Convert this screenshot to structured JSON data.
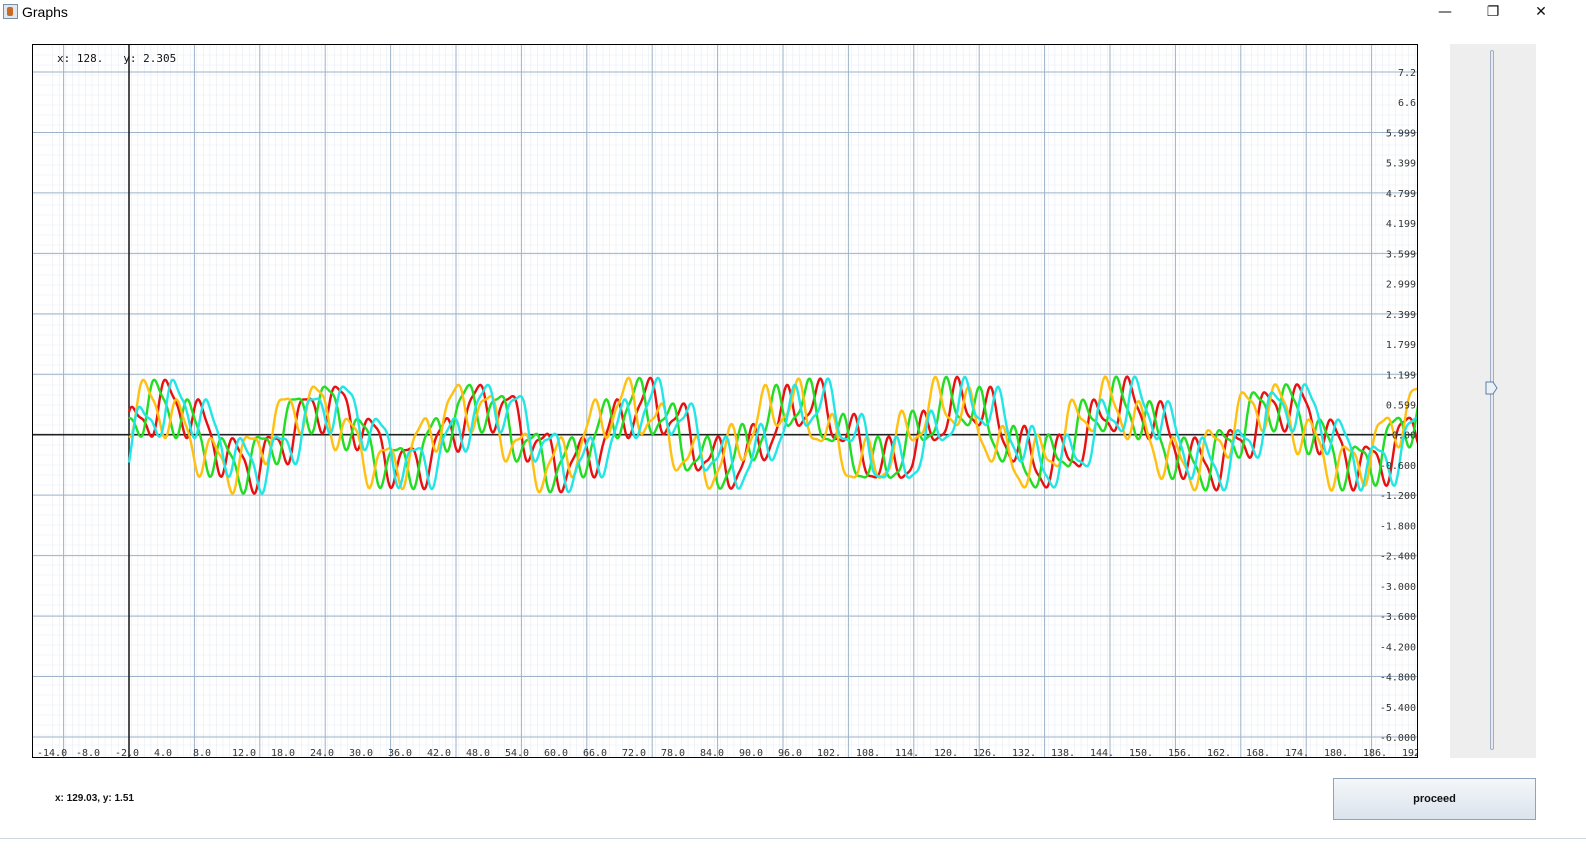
{
  "window": {
    "title": "Graphs",
    "controls": {
      "minimize": "—",
      "restore": "❐",
      "close": "✕"
    }
  },
  "plot": {
    "cursor_readout": "x: 128.   y: 2.305",
    "x_tick_labels": [
      "-14.0",
      "-8.0",
      "-2.0",
      "4.0",
      "8.0",
      "12.0",
      "18.0",
      "24.0",
      "30.0",
      "36.0",
      "42.0",
      "48.0",
      "54.0",
      "60.0",
      "66.0",
      "72.0",
      "78.0",
      "84.0",
      "90.0",
      "96.0",
      "102.",
      "108.",
      "114.",
      "120.",
      "126.",
      "132.",
      "138.",
      "144.",
      "150.",
      "156.",
      "162.",
      "168.",
      "174.",
      "180.",
      "186.",
      "192."
    ],
    "y_tick_labels": [
      "7.2",
      "6.6",
      "5.999",
      "5.399",
      "4.799",
      "4.199",
      "3.599",
      "2.999",
      "2.399",
      "1.799",
      "1.199",
      "0.599",
      "-0.00",
      "-0.600",
      "-1.200",
      "-1.800",
      "-2.400",
      "-3.000",
      "-3.600",
      "-4.200",
      "-4.800",
      "-5.400",
      "-6.000"
    ],
    "series_colors": [
      "#e81010",
      "#22dd22",
      "#ffc010",
      "#22e6e6"
    ]
  },
  "chart_data": {
    "type": "line",
    "xlim": [
      -14,
      192
    ],
    "ylim": [
      -6.0,
      7.2
    ],
    "grid": true,
    "series": [
      {
        "color": "#e81010",
        "amplitude": 1.2,
        "base_period": 29.3,
        "phase": 0.0
      },
      {
        "color": "#22dd22",
        "amplitude": 1.2,
        "base_period": 29.3,
        "phase": 2.0
      },
      {
        "color": "#ffc010",
        "amplitude": 1.2,
        "base_period": 29.3,
        "phase": 4.0
      },
      {
        "color": "#22e6e6",
        "amplitude": 1.2,
        "base_period": 29.3,
        "phase": -1.4
      }
    ]
  },
  "slider": {
    "value_fraction": 0.52
  },
  "status": {
    "text": "x: 129.03, y: 1.51"
  },
  "buttons": {
    "proceed_label": "proceed"
  }
}
